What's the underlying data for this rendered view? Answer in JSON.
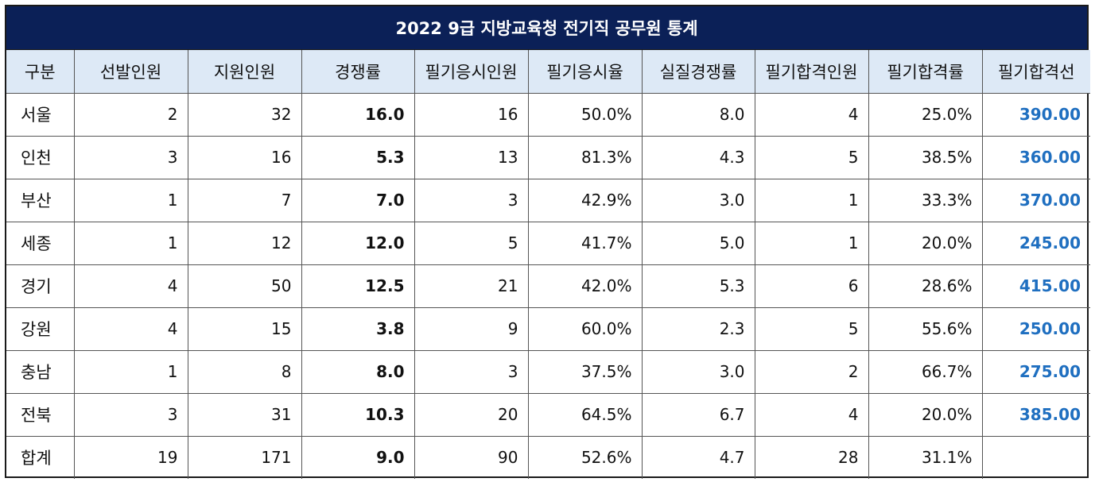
{
  "title": "2022 9급 지방교육청 전기직 공무원 통계",
  "headers": [
    "구분",
    "선발인원",
    "지원인원",
    "경쟁률",
    "필기응시인원",
    "필기응시율",
    "실질경쟁률",
    "필기합격인원",
    "필기합격률",
    "필기합격선"
  ],
  "rows": [
    [
      "서울",
      "2",
      "32",
      "16.0",
      "16",
      "50.0%",
      "8.0",
      "4",
      "25.0%",
      "390.00"
    ],
    [
      "인천",
      "3",
      "16",
      "5.3",
      "13",
      "81.3%",
      "4.3",
      "5",
      "38.5%",
      "360.00"
    ],
    [
      "부산",
      "1",
      "7",
      "7.0",
      "3",
      "42.9%",
      "3.0",
      "1",
      "33.3%",
      "370.00"
    ],
    [
      "세종",
      "1",
      "12",
      "12.0",
      "5",
      "41.7%",
      "5.0",
      "1",
      "20.0%",
      "245.00"
    ],
    [
      "경기",
      "4",
      "50",
      "12.5",
      "21",
      "42.0%",
      "5.3",
      "6",
      "28.6%",
      "415.00"
    ],
    [
      "강원",
      "4",
      "15",
      "3.8",
      "9",
      "60.0%",
      "2.3",
      "5",
      "55.6%",
      "250.00"
    ],
    [
      "충남",
      "1",
      "8",
      "8.0",
      "3",
      "37.5%",
      "3.0",
      "2",
      "66.7%",
      "275.00"
    ],
    [
      "전북",
      "3",
      "31",
      "10.3",
      "20",
      "64.5%",
      "6.7",
      "4",
      "20.0%",
      "385.00"
    ],
    [
      "합계",
      "19",
      "171",
      "9.0",
      "90",
      "52.6%",
      "4.7",
      "28",
      "31.1%",
      ""
    ]
  ],
  "colors": {
    "title_bg": "#0b2057",
    "header_bg": "#dde9f6",
    "cutoff_text": "#1f6fc0"
  }
}
